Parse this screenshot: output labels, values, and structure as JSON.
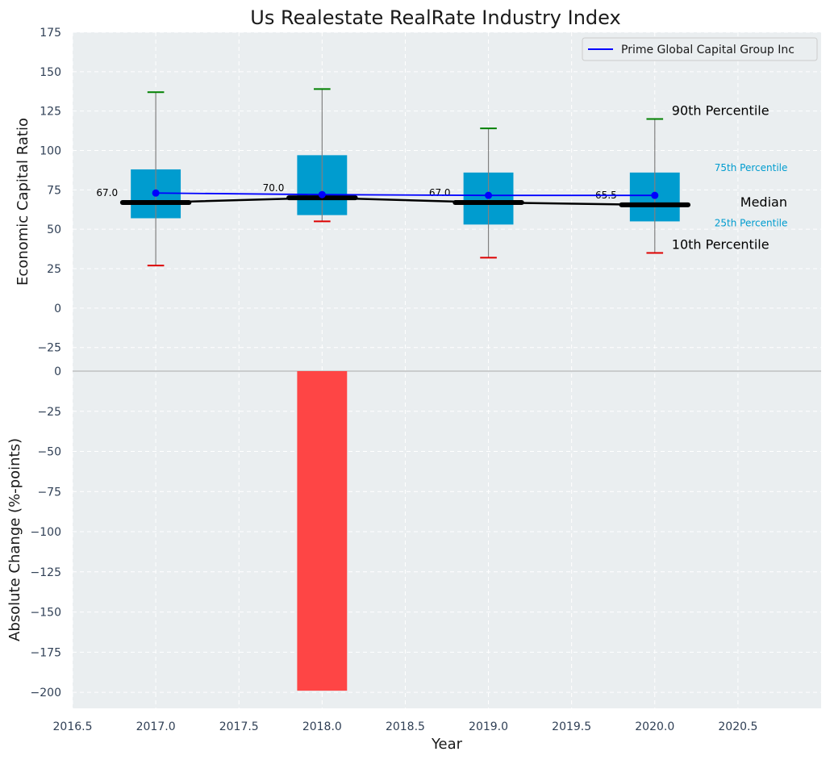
{
  "chart_data": [
    {
      "type": "box",
      "title": "Us Realestate RealRate Industry Index",
      "ylabel": "Economic Capital Ratio",
      "ylim": [
        -40,
        175
      ],
      "yticks": [
        175,
        150,
        125,
        100,
        75,
        50,
        25,
        0,
        -25
      ],
      "grid": true,
      "legend_position": "top-right",
      "x": [
        2017,
        2018,
        2019,
        2020
      ],
      "p10": [
        27,
        55,
        32,
        35
      ],
      "p25": [
        57,
        59,
        53,
        55
      ],
      "median": [
        67.0,
        70.0,
        67.0,
        65.5
      ],
      "median_labels": [
        "67.0",
        "70.0",
        "67.0",
        "65.5"
      ],
      "p75": [
        88,
        97,
        86,
        86
      ],
      "p90": [
        137,
        139,
        114,
        120
      ],
      "series": [
        {
          "name": "Prime Global Capital Group Inc",
          "values": [
            73,
            72,
            71.5,
            71.5
          ],
          "color": "#0000ff"
        }
      ],
      "median_line_color": "#000000",
      "box_color": "#009ccf",
      "p90_color": "#008000",
      "p10_color": "#dd0000",
      "annotations": {
        "p90": "90th Percentile",
        "p75": "75th Percentile",
        "median": "Median",
        "p25": "25th Percentile",
        "p10": "10th Percentile"
      }
    },
    {
      "type": "bar",
      "ylabel": "Absolute Change (%-points)",
      "xlabel": "Year",
      "ylim": [
        -210,
        0
      ],
      "yticks": [
        0,
        -25,
        -50,
        -75,
        -100,
        -125,
        -150,
        -175,
        -200
      ],
      "xlim": [
        2016.5,
        2021.0
      ],
      "xticks": [
        "2016.5",
        "2017.0",
        "2017.5",
        "2018.0",
        "2018.5",
        "2019.0",
        "2019.5",
        "2020.0",
        "2020.5"
      ],
      "x": [
        2018
      ],
      "values": [
        -199
      ],
      "color": "#ff3b3b",
      "grid": true
    }
  ]
}
